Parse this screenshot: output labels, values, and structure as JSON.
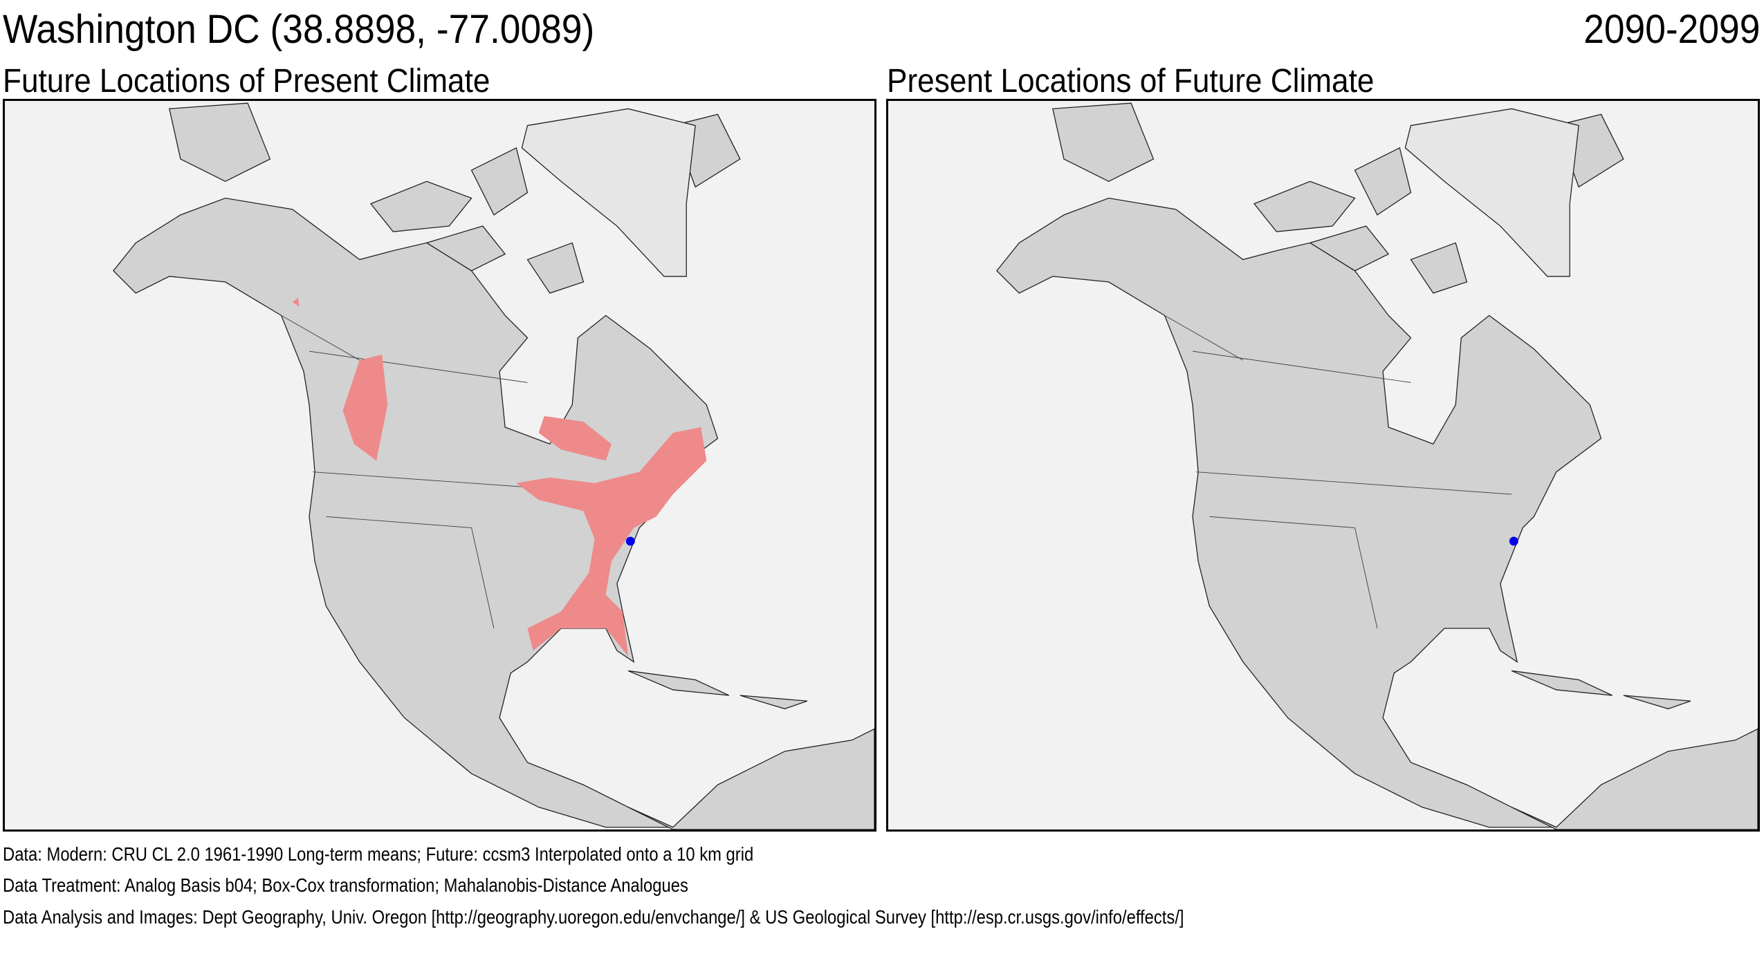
{
  "header": {
    "title": "Washington DC  (38.8898, -77.0089)",
    "period": "2090-2099"
  },
  "panels": [
    {
      "title": "Future Locations of Present Climate",
      "shows_analog_regions": true
    },
    {
      "title": "Present Locations of Future Climate",
      "shows_analog_regions": false
    }
  ],
  "map": {
    "region": "North America",
    "land_color": "#d2d2d2",
    "ocean_color": "#f2f2f2",
    "analog_color": "#ee8a8a",
    "location_marker_color": "#0000ee",
    "location": "Washington DC"
  },
  "footer": {
    "line1": "Data:  Modern: CRU CL 2.0 1961-1990 Long-term means; Future: ccsm3 Interpolated onto a 10 km grid",
    "line2": "Data Treatment:  Analog Basis b04; Box-Cox transformation; Mahalanobis-Distance Analogues",
    "line3": "Data Analysis and Images:  Dept Geography, Univ. Oregon [http://geography.uoregon.edu/envchange/] & US Geological Survey [http://esp.cr.usgs.gov/info/effects/]"
  }
}
